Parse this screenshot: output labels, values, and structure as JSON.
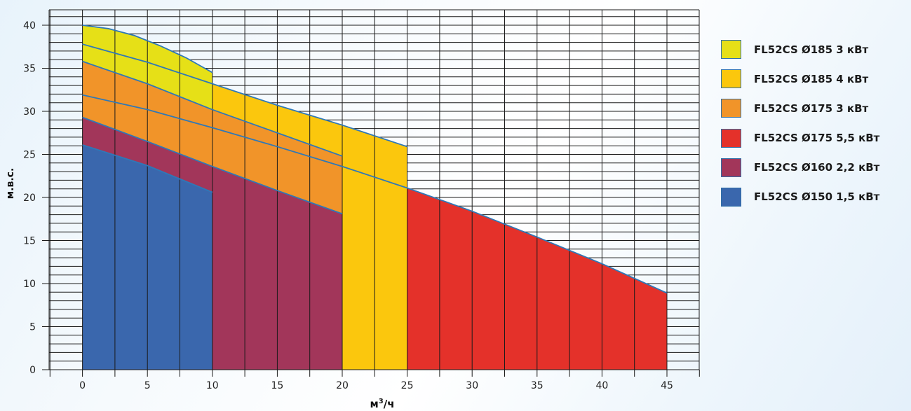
{
  "chart_data": {
    "type": "area",
    "xlabel_main": "м",
    "xlabel_sup": "3",
    "xlabel_rest": "/ч",
    "ylabel": "м.в.с.",
    "xlim": [
      -5,
      47.5
    ],
    "ylim": [
      0,
      41
    ],
    "x_ticks": [
      0,
      5,
      10,
      15,
      20,
      25,
      30,
      35,
      40,
      45
    ],
    "y_ticks": [
      0,
      5,
      10,
      15,
      20,
      25,
      30,
      35,
      40
    ],
    "grid": true,
    "legend_position": "right",
    "series": [
      {
        "name": "FL52CS Ø185 3 кВт",
        "color": "#e6e017",
        "x": [
          0,
          2,
          4,
          6,
          8,
          10
        ],
        "y": [
          40,
          39.6,
          38.8,
          37.6,
          36.2,
          34.5
        ]
      },
      {
        "name": "FL52CS Ø185 4 кВт",
        "color": "#fbc70d",
        "x": [
          0,
          5,
          10,
          15,
          20,
          25
        ],
        "y": [
          37.8,
          35.7,
          33.2,
          30.7,
          28.4,
          25.9
        ]
      },
      {
        "name": "FL52CS Ø175 3 кВт",
        "color": "#f19429",
        "x": [
          0,
          5,
          10,
          15,
          20
        ],
        "y": [
          35.8,
          33.2,
          30.2,
          27.5,
          24.8
        ]
      },
      {
        "name": "FL52CS Ø175 5,5 кВт",
        "color": "#e4312a",
        "x": [
          0,
          5,
          10,
          15,
          20,
          25,
          30,
          35,
          40,
          45
        ],
        "y": [
          31.9,
          30.2,
          28.1,
          25.9,
          23.6,
          21.1,
          18.4,
          15.4,
          12.3,
          8.9
        ]
      },
      {
        "name": "FL52CS Ø160 2,2 кВт",
        "color": "#a2365a",
        "x": [
          0,
          5,
          10,
          15,
          20
        ],
        "y": [
          29.3,
          26.5,
          23.6,
          20.8,
          18.1
        ]
      },
      {
        "name": "FL52CS Ø150 1,5 кВт",
        "color": "#3a67ad",
        "x": [
          0,
          5,
          10
        ],
        "y": [
          26.1,
          23.7,
          20.6
        ]
      }
    ]
  }
}
